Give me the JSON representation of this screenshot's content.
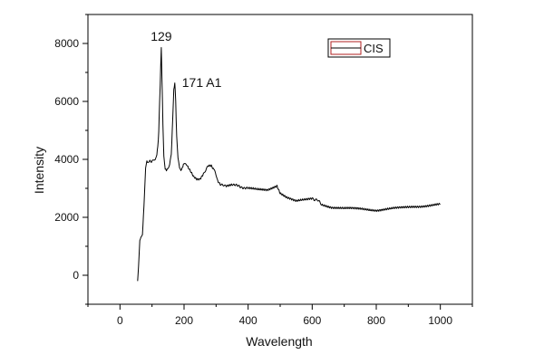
{
  "chart_data": {
    "type": "line",
    "xlabel": "Wavelength",
    "ylabel": "Intensity",
    "xlim": [
      -100,
      1100
    ],
    "ylim": [
      -1000,
      9000
    ],
    "xticks": [
      0,
      200,
      400,
      600,
      800,
      1000
    ],
    "yticks": [
      0,
      2000,
      4000,
      6000,
      8000
    ],
    "legend": {
      "placement": "top-right",
      "entries": [
        "CIS"
      ]
    },
    "annotations": [
      {
        "text": "129",
        "x": 129,
        "y": 7900
      },
      {
        "text": "171 A1",
        "x": 171,
        "y": 6650
      }
    ],
    "series": [
      {
        "name": "CIS",
        "color": "#000000",
        "x": [
          55,
          58,
          62,
          65,
          70,
          75,
          80,
          84,
          88,
          92,
          96,
          100,
          105,
          110,
          115,
          118,
          121,
          124,
          127,
          129,
          131,
          134,
          137,
          141,
          145,
          150,
          155,
          160,
          165,
          168,
          171,
          174,
          177,
          181,
          186,
          192,
          198,
          205,
          212,
          220,
          230,
          240,
          250,
          262,
          275,
          285,
          293,
          298,
          305,
          315,
          330,
          350,
          375,
          400,
          430,
          460,
          480,
          490,
          500,
          520,
          550,
          580,
          600,
          615,
          630,
          660,
          700,
          750,
          800,
          850,
          900,
          950,
          1000
        ],
        "values": [
          -200,
          300,
          1200,
          1300,
          1400,
          2400,
          3700,
          3950,
          3850,
          3950,
          3900,
          3900,
          4000,
          4000,
          4200,
          4400,
          5000,
          6000,
          7200,
          7900,
          6800,
          5200,
          4100,
          3700,
          3600,
          3650,
          3800,
          4200,
          5500,
          6400,
          6650,
          6000,
          4800,
          4000,
          3700,
          3650,
          3850,
          3800,
          3750,
          3600,
          3400,
          3300,
          3300,
          3500,
          3800,
          3800,
          3650,
          3500,
          3250,
          3100,
          3100,
          3150,
          3050,
          3000,
          2950,
          2950,
          3050,
          3100,
          2850,
          2700,
          2550,
          2600,
          2650,
          2600,
          2450,
          2350,
          2300,
          2300,
          2250,
          2300,
          2350,
          2400,
          2450
        ]
      }
    ]
  }
}
